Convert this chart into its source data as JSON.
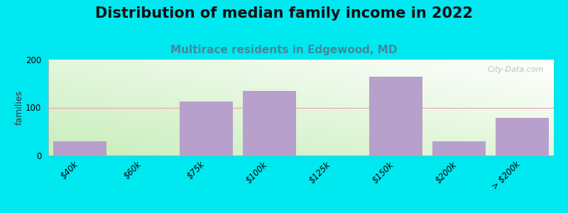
{
  "title": "Distribution of median family income in 2022",
  "subtitle": "Multirace residents in Edgewood, MD",
  "ylabel": "families",
  "categories": [
    "$40k",
    "$60k",
    "$75k",
    "$100k",
    "$125k",
    "$150k",
    "$200k",
    "> $200k"
  ],
  "values": [
    30,
    0,
    112,
    135,
    0,
    165,
    30,
    78
  ],
  "bar_color": "#b8a0cc",
  "outer_background": "#00e8f0",
  "bg_green": "#c8eebb",
  "bg_white": "#ffffff",
  "ylim": [
    0,
    200
  ],
  "yticks": [
    0,
    100,
    200
  ],
  "gridline_color": "#e8a0a8",
  "watermark": "City-Data.com",
  "title_fontsize": 15,
  "subtitle_fontsize": 11,
  "ylabel_fontsize": 9,
  "tick_fontsize": 8.5
}
